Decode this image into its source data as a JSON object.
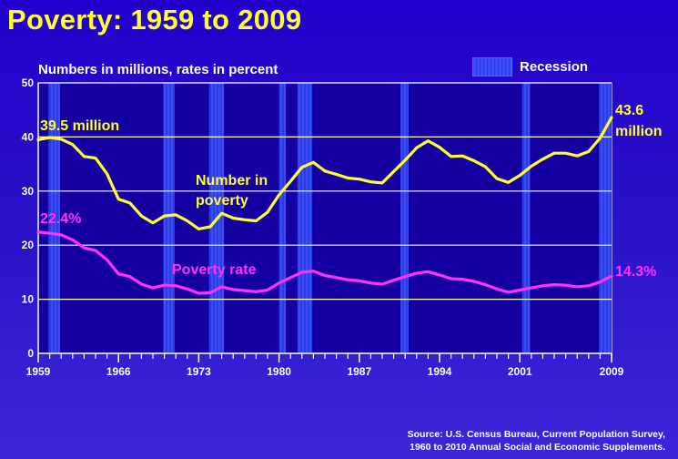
{
  "chart_data": {
    "type": "line",
    "title": "Poverty:  1959 to 2009",
    "ylabel": "Numbers in millions, rates in percent",
    "legend": {
      "label": "Recession",
      "placement": "top-right"
    },
    "source_line1": "Source:  U.S. Census Bureau, Current Population Survey,",
    "source_line2": "1960 to 2010 Annual Social and Economic Supplements.",
    "xlim": [
      1959,
      2009
    ],
    "ylim": [
      0,
      50
    ],
    "x_ticks": [
      1959,
      1966,
      1973,
      1980,
      1987,
      1994,
      2001,
      2009
    ],
    "y_ticks": [
      0,
      10,
      20,
      30,
      40,
      50
    ],
    "grid": true,
    "recessions": [
      [
        1959.9,
        1960.9
      ],
      [
        1969.9,
        1970.9
      ],
      [
        1973.9,
        1975.2
      ],
      [
        1980.0,
        1980.6
      ],
      [
        1981.6,
        1982.9
      ],
      [
        1990.6,
        1991.3
      ],
      [
        2001.2,
        2001.9
      ],
      [
        2007.9,
        2009.0
      ]
    ],
    "series": [
      {
        "name": "Number in poverty",
        "color": "#ffff33",
        "x": [
          1959,
          1960,
          1961,
          1962,
          1963,
          1964,
          1965,
          1966,
          1967,
          1968,
          1969,
          1970,
          1971,
          1972,
          1973,
          1974,
          1975,
          1976,
          1977,
          1978,
          1979,
          1980,
          1981,
          1982,
          1983,
          1984,
          1985,
          1986,
          1987,
          1988,
          1989,
          1990,
          1991,
          1992,
          1993,
          1994,
          1995,
          1996,
          1997,
          1998,
          1999,
          2000,
          2001,
          2002,
          2003,
          2004,
          2005,
          2006,
          2007,
          2008,
          2009
        ],
        "values": [
          39.5,
          39.9,
          39.6,
          38.6,
          36.4,
          36.1,
          33.2,
          28.5,
          27.8,
          25.4,
          24.1,
          25.4,
          25.6,
          24.5,
          23.0,
          23.4,
          25.9,
          25.0,
          24.7,
          24.5,
          26.1,
          29.3,
          31.8,
          34.4,
          35.3,
          33.7,
          33.1,
          32.4,
          32.2,
          31.7,
          31.5,
          33.6,
          35.7,
          38.0,
          39.3,
          38.1,
          36.4,
          36.5,
          35.6,
          34.5,
          32.3,
          31.6,
          32.9,
          34.6,
          35.9,
          37.0,
          37.0,
          36.5,
          37.3,
          39.8,
          43.6
        ],
        "annotations": {
          "start": "39.5 million",
          "middle_line1": "Number in",
          "middle_line2": "poverty",
          "end_line1": "43.6",
          "end_line2": "million"
        }
      },
      {
        "name": "Poverty rate",
        "color": "#ff33ff",
        "x": [
          1959,
          1960,
          1961,
          1962,
          1963,
          1964,
          1965,
          1966,
          1967,
          1968,
          1969,
          1970,
          1971,
          1972,
          1973,
          1974,
          1975,
          1976,
          1977,
          1978,
          1979,
          1980,
          1981,
          1982,
          1983,
          1984,
          1985,
          1986,
          1987,
          1988,
          1989,
          1990,
          1991,
          1992,
          1993,
          1994,
          1995,
          1996,
          1997,
          1998,
          1999,
          2000,
          2001,
          2002,
          2003,
          2004,
          2005,
          2006,
          2007,
          2008,
          2009
        ],
        "values": [
          22.4,
          22.2,
          21.9,
          21.0,
          19.5,
          19.0,
          17.3,
          14.7,
          14.2,
          12.8,
          12.1,
          12.6,
          12.5,
          11.9,
          11.1,
          11.2,
          12.3,
          11.8,
          11.6,
          11.4,
          11.7,
          13.0,
          14.0,
          15.0,
          15.2,
          14.4,
          14.0,
          13.6,
          13.4,
          13.0,
          12.8,
          13.5,
          14.2,
          14.8,
          15.1,
          14.5,
          13.8,
          13.7,
          13.3,
          12.7,
          11.9,
          11.3,
          11.7,
          12.1,
          12.5,
          12.7,
          12.6,
          12.3,
          12.5,
          13.2,
          14.3
        ],
        "annotations": {
          "start": "22.4%",
          "middle": "Poverty rate",
          "end": "14.3%"
        }
      }
    ]
  }
}
